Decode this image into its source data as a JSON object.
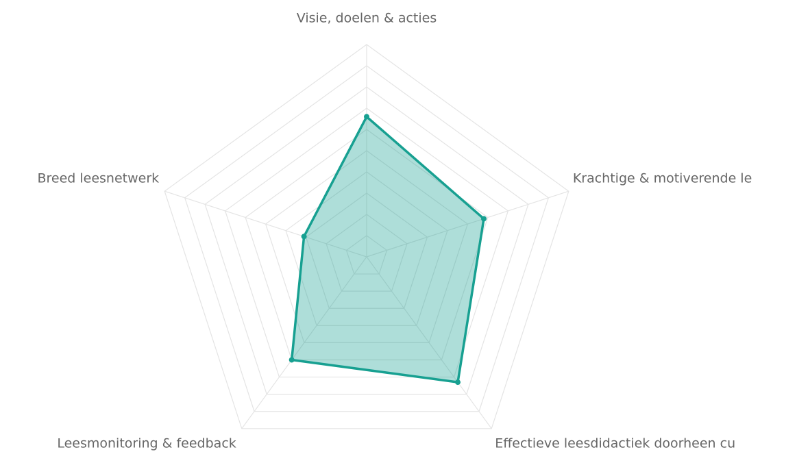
{
  "chart_data": {
    "type": "radar",
    "categories": [
      "Visie, doelen & acties",
      "Krachtige & motiverende le",
      "Effectieve leesdidactiek doorheen cu",
      "Leesmonitoring & feedback",
      "Breed leesnetwerk"
    ],
    "series": [
      {
        "color": "#17a091",
        "values": [
          66,
          58,
          73,
          60,
          31
        ]
      }
    ],
    "rlim": [
      0,
      100
    ],
    "rticks": [
      10,
      20,
      30,
      40,
      50,
      60,
      70,
      80,
      90,
      100
    ],
    "grid": true
  }
}
